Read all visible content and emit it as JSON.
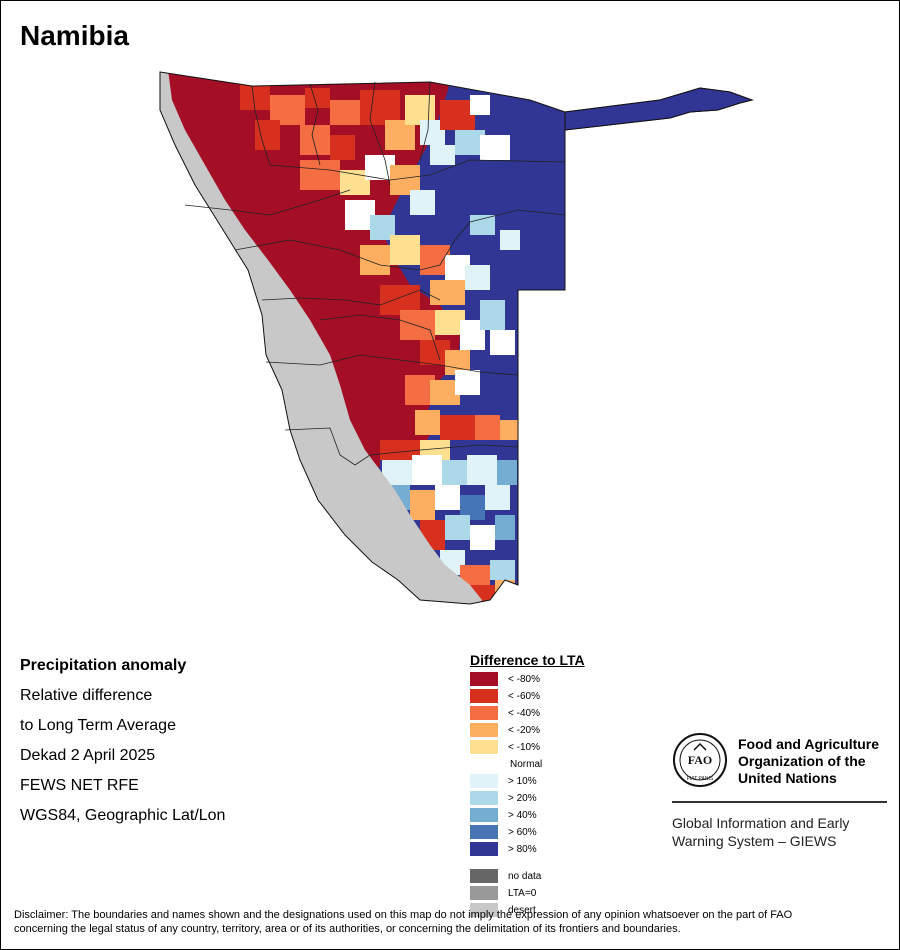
{
  "map": {
    "title": "Namibia"
  },
  "info": {
    "heading": "Precipitation anomaly",
    "line1": "Relative difference",
    "line2": "to Long Term Average",
    "period": "Dekad 2 April 2025",
    "source": "FEWS NET RFE",
    "projection": "WGS84, Geographic Lat/Lon"
  },
  "legend": {
    "title": "Difference to LTA",
    "classes": [
      {
        "label": "< -80%",
        "color": "#a50f26"
      },
      {
        "label": "< -60%",
        "color": "#d7301f"
      },
      {
        "label": "< -40%",
        "color": "#f46d43"
      },
      {
        "label": "< -20%",
        "color": "#fdae61"
      },
      {
        "label": "< -10%",
        "color": "#fee090"
      },
      {
        "label": "Normal",
        "color": "#ffffff"
      },
      {
        "label": "> 10%",
        "color": "#e0f3f8"
      },
      {
        "label": "> 20%",
        "color": "#abd9e9"
      },
      {
        "label": "> 40%",
        "color": "#74add1"
      },
      {
        "label": "> 60%",
        "color": "#4575b4"
      },
      {
        "label": "> 80%",
        "color": "#313695"
      }
    ],
    "extra": [
      {
        "label": "no data",
        "color": "#666666"
      },
      {
        "label": "LTA=0",
        "color": "#999999"
      },
      {
        "label": "desert",
        "color": "#c8c8c8"
      }
    ]
  },
  "organization": {
    "name_line1": "Food and Agriculture",
    "name_line2": "Organization of the",
    "name_line3": "United Nations",
    "logo_text": "FAO",
    "logo_motto": "FIAT PANIS",
    "system_line1": "Global Information and Early",
    "system_line2": "Warning System – GIEWS"
  },
  "disclaimer": {
    "line1": "Disclaimer: The boundaries and names shown and the designations used on this map do not imply the expression of any opinion whatsoever on the part of FAO",
    "line2": "concerning the legal status of any country, territory, area or of its authorities, or concerning the delimitation of its frontiers and boundaries."
  }
}
